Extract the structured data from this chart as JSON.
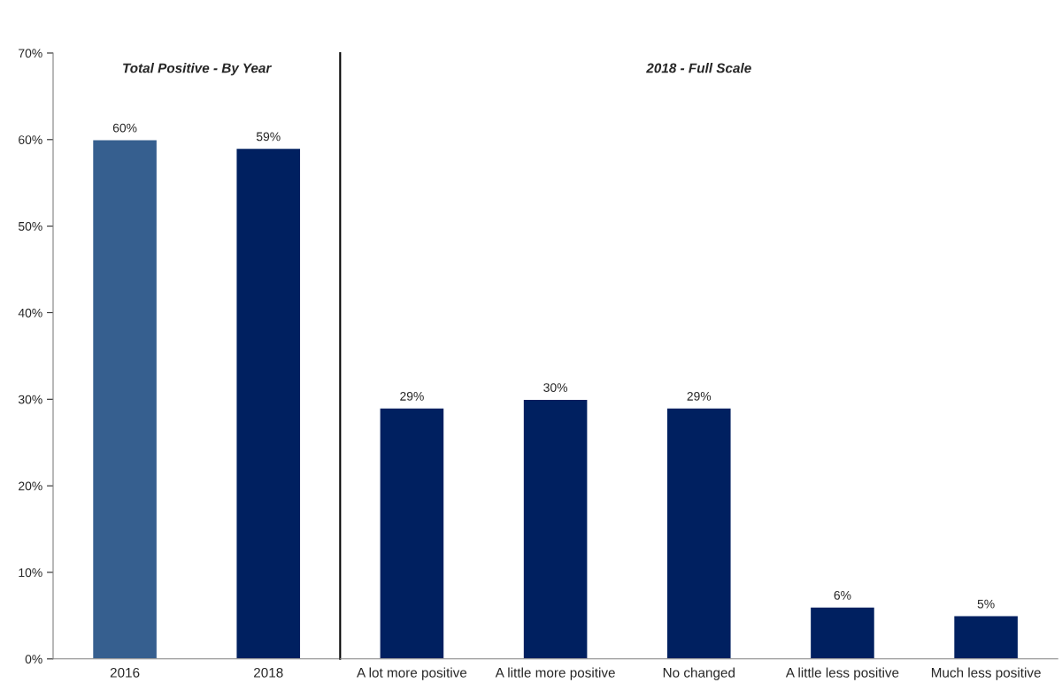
{
  "chart_data": [
    {
      "type": "bar",
      "title": "Total Positive - By Year",
      "categories": [
        "2016",
        "2018"
      ],
      "values": [
        60,
        59
      ],
      "colors": [
        "#365f8f",
        "#002060"
      ],
      "value_labels": [
        "60%",
        "59%"
      ],
      "ylim": [
        0,
        70
      ],
      "yticks": [
        {
          "value": 0,
          "label": "0%"
        },
        {
          "value": 10,
          "label": "10%"
        },
        {
          "value": 20,
          "label": "20%"
        },
        {
          "value": 30,
          "label": "30%"
        },
        {
          "value": 40,
          "label": "40%"
        },
        {
          "value": 50,
          "label": "50%"
        },
        {
          "value": 60,
          "label": "60%"
        },
        {
          "value": 70,
          "label": "70%"
        }
      ]
    },
    {
      "type": "bar",
      "title": "2018 - Full Scale",
      "categories": [
        "A lot more positive",
        "A little more positive",
        "No changed",
        "A little less positive",
        "Much less positive"
      ],
      "values": [
        29,
        30,
        29,
        6,
        5
      ],
      "colors": [
        "#002060",
        "#002060",
        "#002060",
        "#002060",
        "#002060"
      ],
      "value_labels": [
        "29%",
        "30%",
        "29%",
        "6%",
        "5%"
      ],
      "ylim": [
        0,
        70
      ],
      "tick_labels": "x"
    }
  ]
}
